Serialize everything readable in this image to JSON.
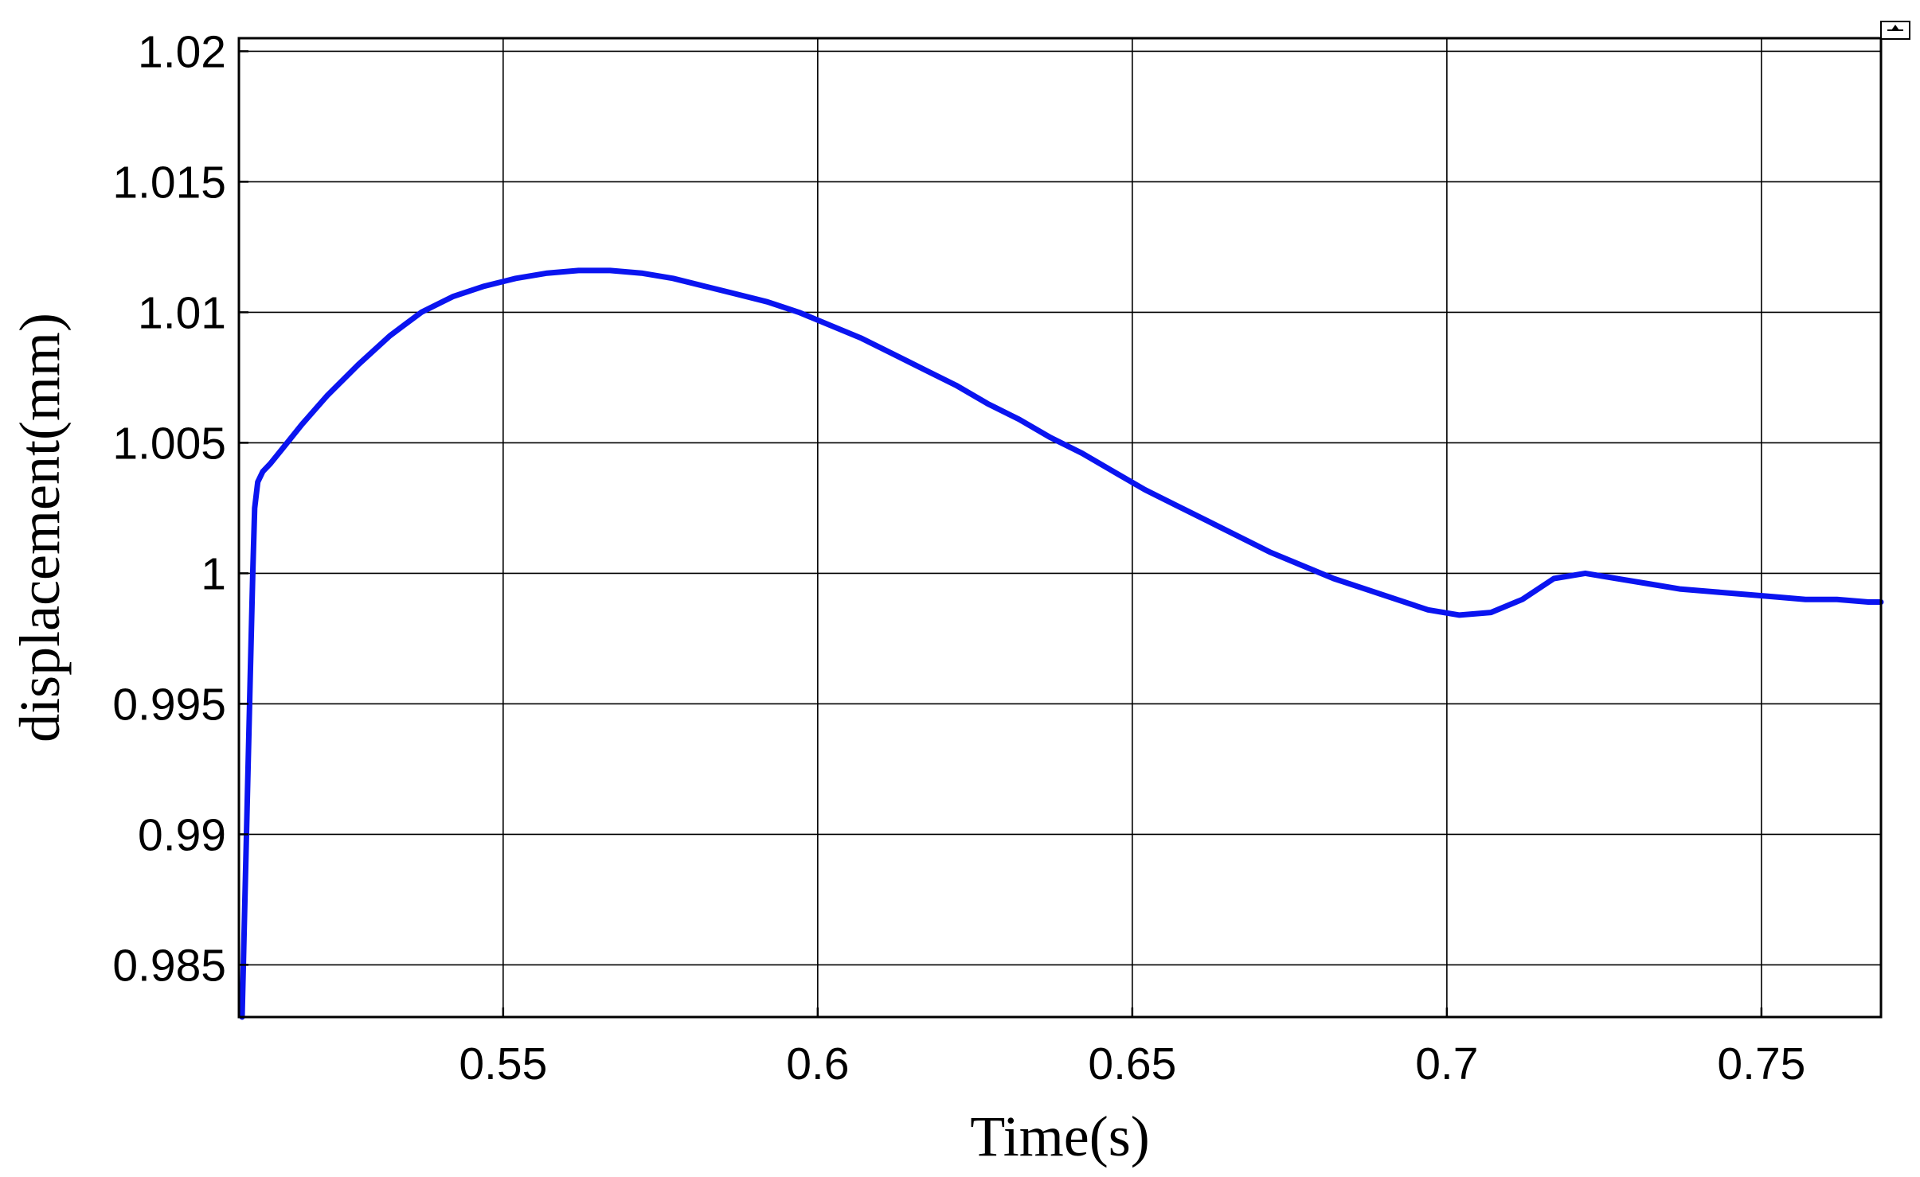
{
  "chart_data": {
    "type": "line",
    "title": "",
    "xlabel": "Time(s)",
    "ylabel": "displacement(mm)",
    "xlim": [
      0.508,
      0.769
    ],
    "ylim": [
      0.983,
      1.0205
    ],
    "xticks": [
      0.55,
      0.6,
      0.65,
      0.7,
      0.75
    ],
    "xtick_labels": [
      "0.55",
      "0.6",
      "0.65",
      "0.7",
      "0.75"
    ],
    "yticks": [
      0.985,
      0.99,
      0.995,
      1.0,
      1.005,
      1.01,
      1.015,
      1.02
    ],
    "ytick_labels": [
      "0.985",
      "0.99",
      "0.995",
      "1",
      "1.005",
      "1.01",
      "1.015",
      "1.02"
    ],
    "grid": true,
    "legend": "none",
    "series": [
      {
        "color": "#0a14f0",
        "x": [
          0.5085,
          0.5092,
          0.5098,
          0.5102,
          0.5105,
          0.511,
          0.5118,
          0.513,
          0.515,
          0.518,
          0.522,
          0.527,
          0.532,
          0.537,
          0.542,
          0.547,
          0.552,
          0.557,
          0.562,
          0.567,
          0.572,
          0.577,
          0.582,
          0.587,
          0.592,
          0.597,
          0.602,
          0.607,
          0.612,
          0.617,
          0.622,
          0.627,
          0.632,
          0.637,
          0.642,
          0.647,
          0.652,
          0.657,
          0.662,
          0.667,
          0.672,
          0.677,
          0.682,
          0.687,
          0.692,
          0.697,
          0.702,
          0.707,
          0.712,
          0.717,
          0.722,
          0.727,
          0.732,
          0.737,
          0.742,
          0.747,
          0.752,
          0.757,
          0.762,
          0.767,
          0.769
        ],
        "y": [
          0.983,
          0.99,
          0.996,
          1.0,
          1.0025,
          1.0035,
          1.0039,
          1.0042,
          1.0048,
          1.0057,
          1.0068,
          1.008,
          1.0091,
          1.01,
          1.0106,
          1.011,
          1.0113,
          1.0115,
          1.0116,
          1.0116,
          1.0115,
          1.0113,
          1.011,
          1.0107,
          1.0104,
          1.01,
          1.0095,
          1.009,
          1.0084,
          1.0078,
          1.0072,
          1.0065,
          1.0059,
          1.0052,
          1.0046,
          1.0039,
          1.0032,
          1.0026,
          1.002,
          1.0014,
          1.0008,
          1.0003,
          0.9998,
          0.9994,
          0.999,
          0.9986,
          0.9984,
          0.9985,
          0.999,
          0.9998,
          1.0,
          0.9998,
          0.9996,
          0.9994,
          0.9993,
          0.9992,
          0.9991,
          0.999,
          0.999,
          0.9989,
          0.9989
        ]
      }
    ]
  }
}
